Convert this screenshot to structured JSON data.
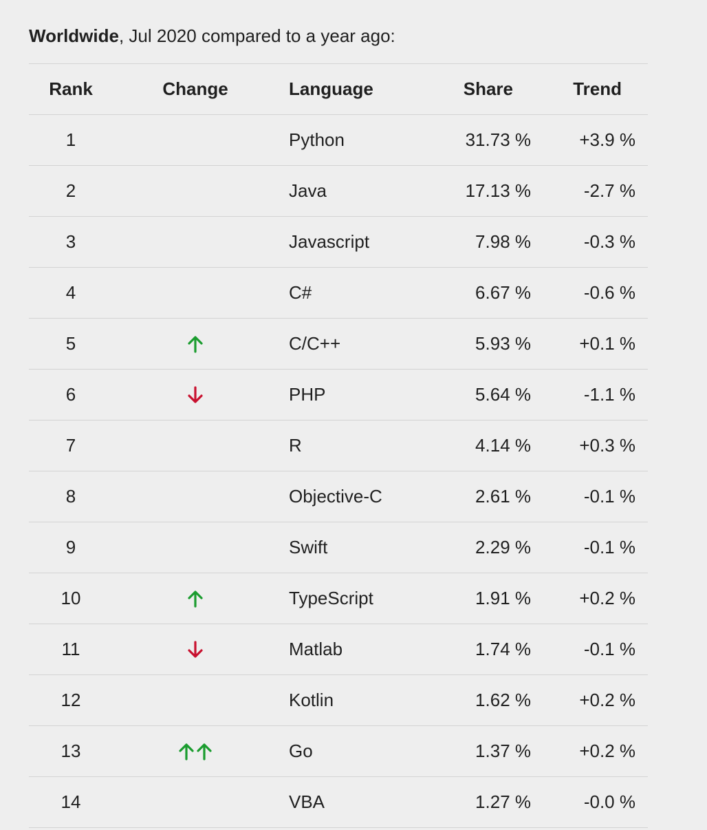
{
  "heading": {
    "bold": "Worldwide",
    "rest": ", Jul 2020 compared to a year ago:"
  },
  "columns": {
    "rank": "Rank",
    "change": "Change",
    "language": "Language",
    "share": "Share",
    "trend": "Trend"
  },
  "colors": {
    "up": "#1a9c2e",
    "down": "#c8102e"
  },
  "rows": [
    {
      "rank": "1",
      "change": [],
      "language": "Python",
      "share": "31.73 %",
      "trend": "+3.9 %"
    },
    {
      "rank": "2",
      "change": [],
      "language": "Java",
      "share": "17.13 %",
      "trend": "-2.7 %"
    },
    {
      "rank": "3",
      "change": [],
      "language": "Javascript",
      "share": "7.98 %",
      "trend": "-0.3 %"
    },
    {
      "rank": "4",
      "change": [],
      "language": "C#",
      "share": "6.67 %",
      "trend": "-0.6 %"
    },
    {
      "rank": "5",
      "change": [
        "up"
      ],
      "language": "C/C++",
      "share": "5.93 %",
      "trend": "+0.1 %"
    },
    {
      "rank": "6",
      "change": [
        "down"
      ],
      "language": "PHP",
      "share": "5.64 %",
      "trend": "-1.1 %"
    },
    {
      "rank": "7",
      "change": [],
      "language": "R",
      "share": "4.14 %",
      "trend": "+0.3 %"
    },
    {
      "rank": "8",
      "change": [],
      "language": "Objective-C",
      "share": "2.61 %",
      "trend": "-0.1 %"
    },
    {
      "rank": "9",
      "change": [],
      "language": "Swift",
      "share": "2.29 %",
      "trend": "-0.1 %"
    },
    {
      "rank": "10",
      "change": [
        "up"
      ],
      "language": "TypeScript",
      "share": "1.91 %",
      "trend": "+0.2 %"
    },
    {
      "rank": "11",
      "change": [
        "down"
      ],
      "language": "Matlab",
      "share": "1.74 %",
      "trend": "-0.1 %"
    },
    {
      "rank": "12",
      "change": [],
      "language": "Kotlin",
      "share": "1.62 %",
      "trend": "+0.2 %"
    },
    {
      "rank": "13",
      "change": [
        "up",
        "up"
      ],
      "language": "Go",
      "share": "1.37 %",
      "trend": "+0.2 %"
    },
    {
      "rank": "14",
      "change": [],
      "language": "VBA",
      "share": "1.27 %",
      "trend": "-0.0 %"
    }
  ]
}
